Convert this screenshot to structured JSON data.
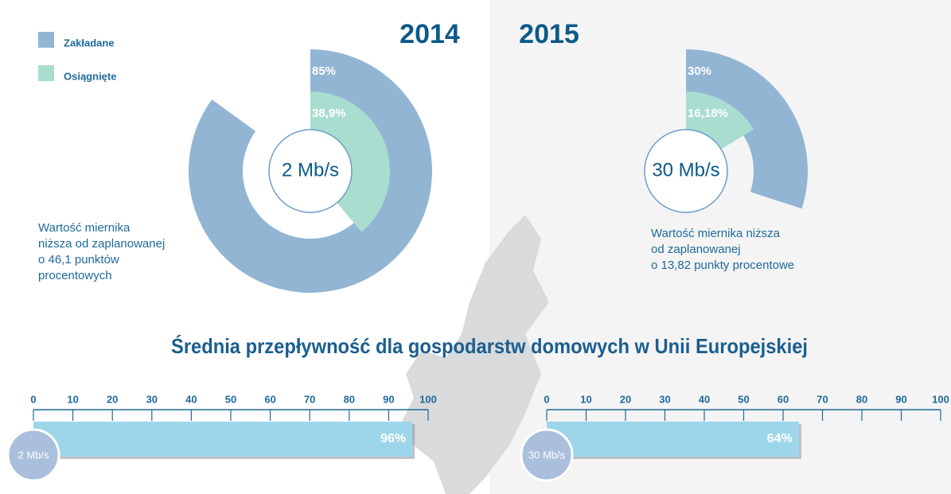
{
  "headline": "Średnia przepływność dla gospodarstw domowych w Unii Europejskiej",
  "chart_data": [
    {
      "type": "radial",
      "title": "2014",
      "center_label": "2 Mb/s",
      "series": [
        {
          "name": "Zakładane",
          "color": "#93b5d4",
          "values": [
            85
          ],
          "value_labels": [
            "85%"
          ]
        },
        {
          "name": "Osiągnięte",
          "color": "#a9ddd0",
          "values": [
            38.9
          ],
          "value_labels": [
            "38,9%"
          ]
        }
      ],
      "note": [
        "Wartość miernika",
        "niższa od zaplanowanej",
        "o 46,1 punktów",
        "procentowych"
      ]
    },
    {
      "type": "radial",
      "title": "2015",
      "center_label": "30 Mb/s",
      "series": [
        {
          "color": "#93b5d4",
          "values": [
            30
          ],
          "value_labels": [
            "30%"
          ]
        },
        {
          "color": "#a9ddd0",
          "values": [
            16.18
          ],
          "value_labels": [
            "16,18%"
          ]
        }
      ],
      "note": [
        "Wartość miernika niższa",
        "od zaplanowanej",
        "o 13,82 punkty procentowe"
      ]
    },
    {
      "type": "gauge",
      "center_label": "2 Mb/s",
      "values": [
        96
      ],
      "value_labels": [
        "96%"
      ],
      "color": "#9dd6ea",
      "xlim": [
        0,
        100
      ],
      "xticks": [
        0,
        10,
        20,
        30,
        40,
        50,
        60,
        70,
        80,
        90,
        100
      ]
    },
    {
      "type": "gauge",
      "center_label": "30 Mb/s",
      "values": [
        64
      ],
      "value_labels": [
        "64%"
      ],
      "color": "#9dd6ea",
      "xlim": [
        0,
        100
      ],
      "xticks": [
        0,
        10,
        20,
        30,
        40,
        50,
        60,
        70,
        80,
        90,
        100
      ]
    }
  ]
}
